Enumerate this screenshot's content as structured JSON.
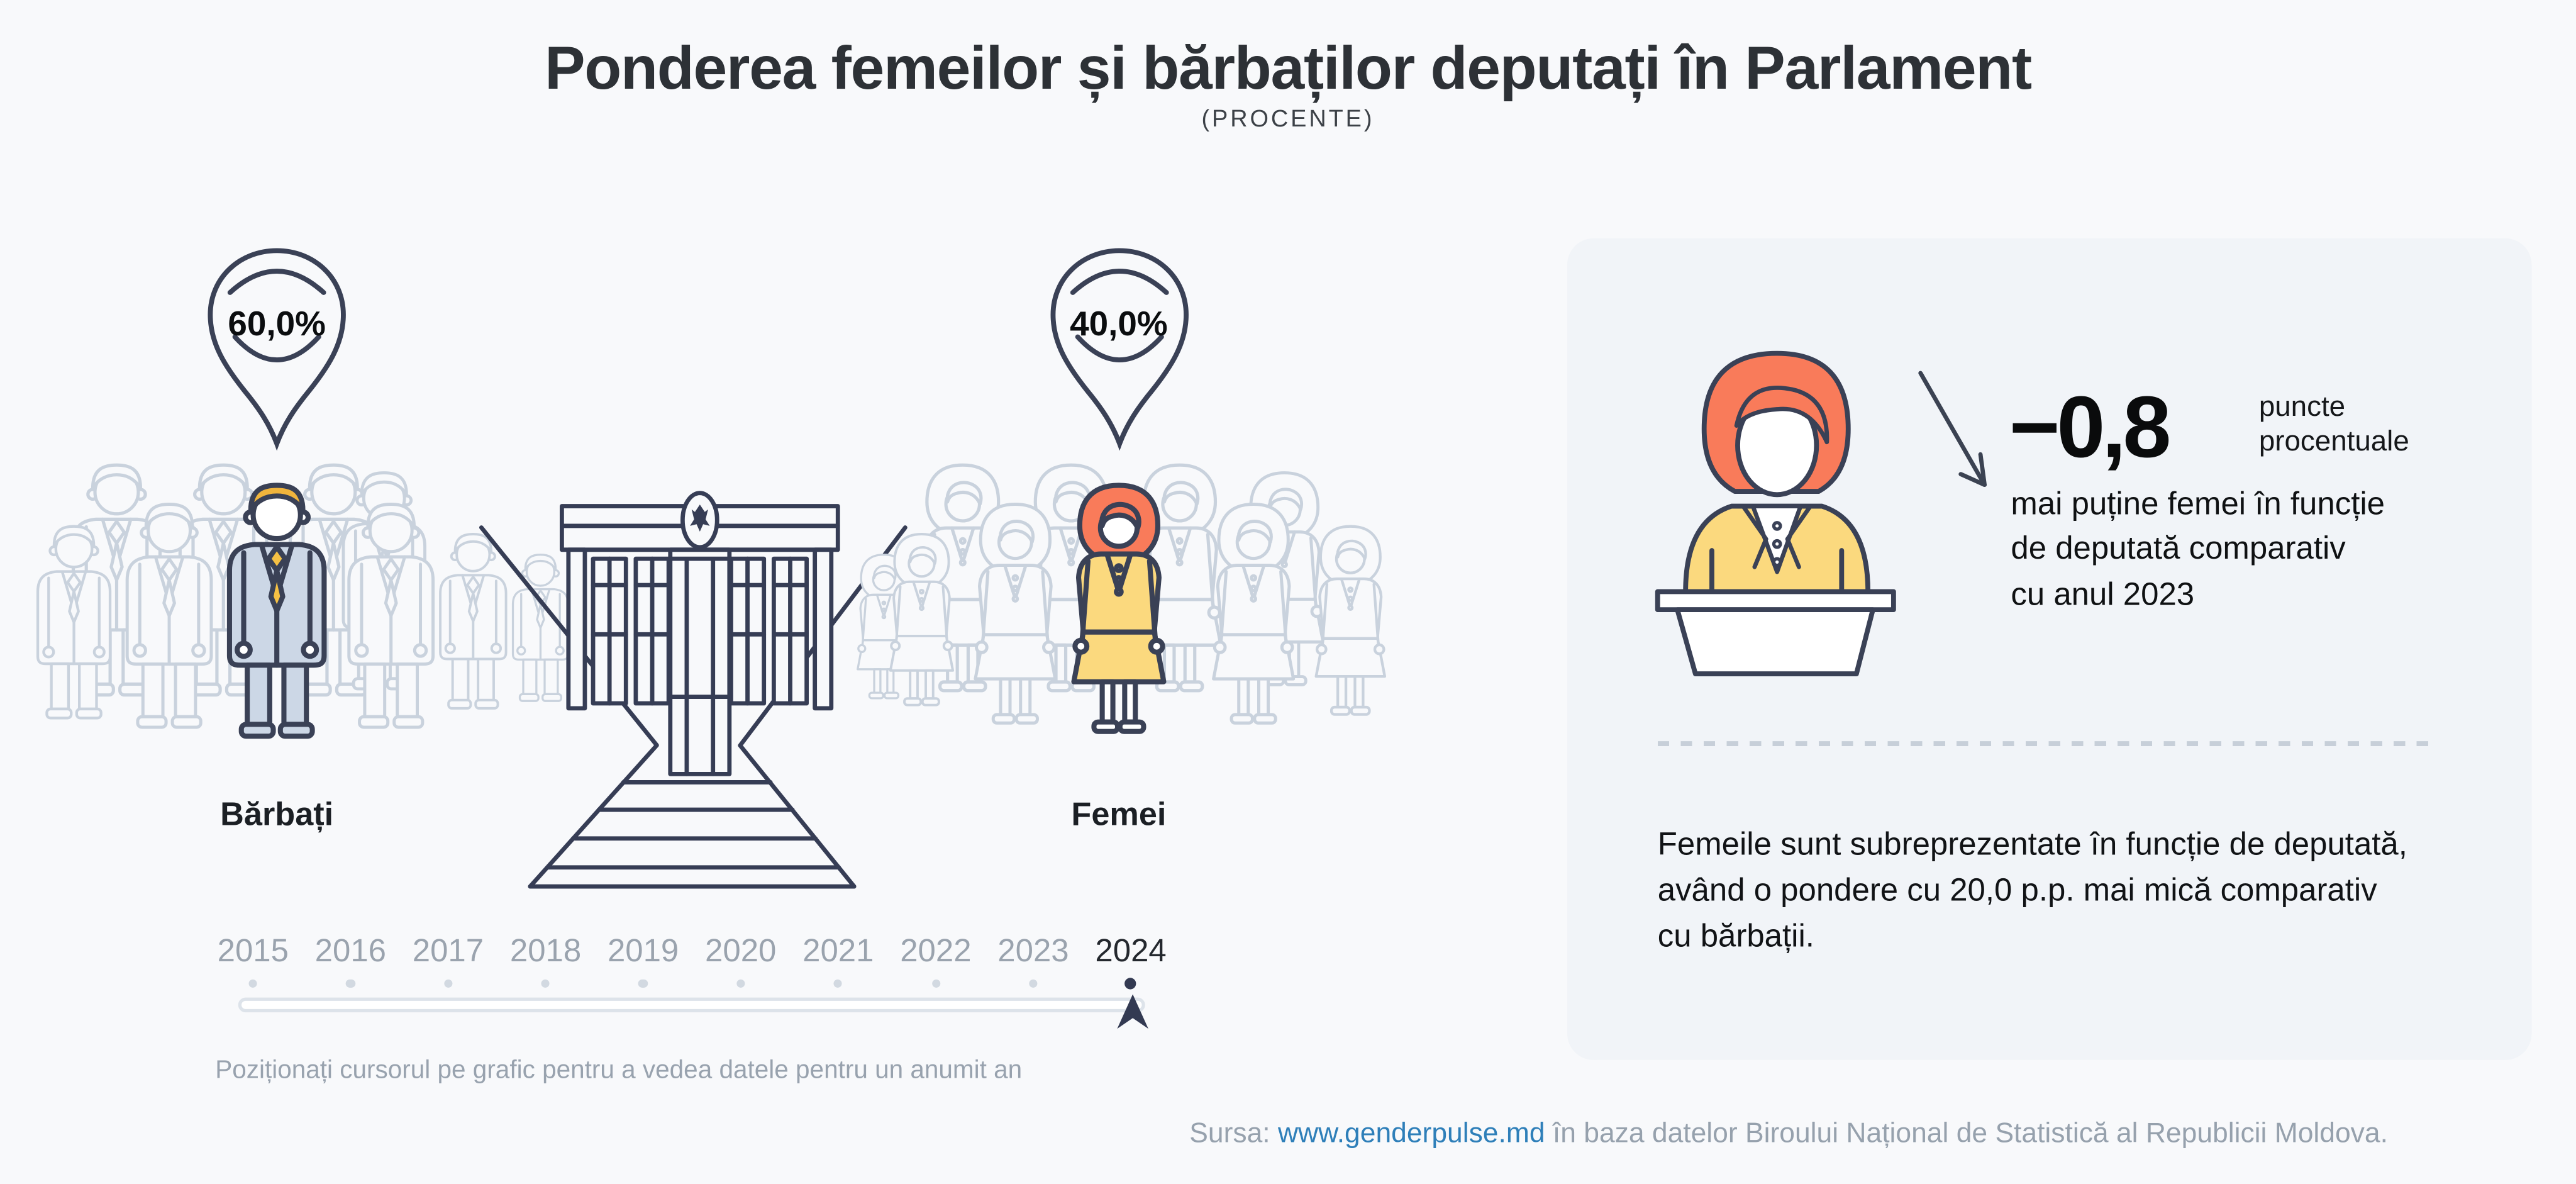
{
  "header": {
    "title": "Ponderea femeilor și bărbaților deputați în Parlament",
    "subtitle": "(PROCENTE)"
  },
  "chart_data": {
    "type": "pictogram-comparison",
    "title": "Ponderea femeilor și bărbaților deputați în Parlament",
    "unit": "PROCENTE",
    "categories": [
      "Bărbați",
      "Femei"
    ],
    "values": [
      60.0,
      40.0
    ],
    "value_labels": [
      "60,0%",
      "40,0%"
    ],
    "timeline_years": [
      2015,
      2016,
      2017,
      2018,
      2019,
      2020,
      2021,
      2022,
      2023,
      2024
    ],
    "selected_year": 2024,
    "change_vs_previous_year": {
      "value": -0.8,
      "unit": "puncte procentuale",
      "direction": "down"
    },
    "gap_percentage_points": 20.0
  },
  "pictogram": {
    "men_value": "60,0%",
    "men_label": "Bărbați",
    "women_value": "40,0%",
    "women_label": "Femei"
  },
  "timeline": {
    "years": [
      "2015",
      "2016",
      "2017",
      "2018",
      "2019",
      "2020",
      "2021",
      "2022",
      "2023",
      "2024"
    ],
    "selected_year": "2024",
    "hint": "Poziționați cursorul pe grafic pentru a vedea datele pentru un anumit an"
  },
  "panel": {
    "change_value": "−0,8",
    "unit_line1": "puncte",
    "unit_line2": "procentuale",
    "description_line1": "mai puține femei în funcție",
    "description_line2": "de deputată comparativ",
    "description_line3": "cu anul 2023",
    "summary_line1": "Femeile sunt subreprezentate în funcție de deputată,",
    "summary_line2": "având o pondere cu 20,0 p.p. mai mică comparativ",
    "summary_line3": "cu bărbații."
  },
  "source": {
    "prefix": "Sursa: ",
    "link": "www.genderpulse.md",
    "suffix": " în baza datelor Biroului Național de Statistică al Republicii Moldova."
  },
  "colors": {
    "page_background": "#f8f9fb",
    "panel_background": "#f1f4f8",
    "outline_navy": "#3a4156",
    "building_navy": "#363d55",
    "crowd_gray": "#c9d2dd",
    "suit_blue": "#ccd7e6",
    "tie_yellow": "#f5c044",
    "hair_yellow": "#f0b43c",
    "hair_coral": "#f97b5a",
    "suit_yellow": "#fbd97e",
    "link_blue": "#2e7fb9",
    "muted_text": "#98a2ae"
  }
}
